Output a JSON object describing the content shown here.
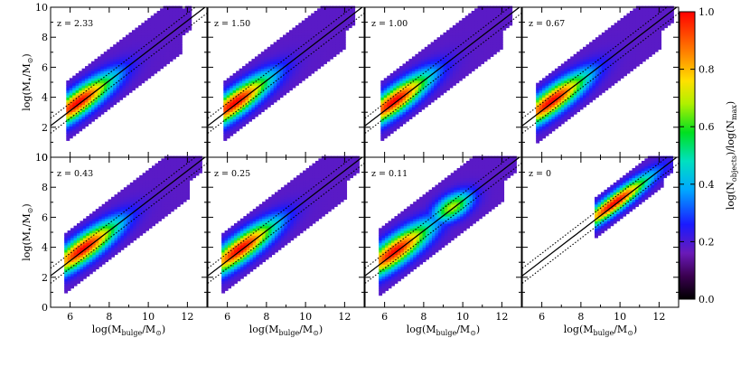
{
  "chart_data": {
    "type": "heatmap",
    "description_grid": "2x4 density maps of black hole mass vs bulge mass at several redshifts",
    "xlim": [
      5,
      13
    ],
    "ylim": [
      0,
      10
    ],
    "x_ticks": [
      6,
      8,
      10,
      12
    ],
    "y_ticks": [
      0,
      2,
      4,
      6,
      8,
      10
    ],
    "xlabel_main": "log(M",
    "xlabel_sub": "bulge",
    "xlabel_tail": "/M",
    "xlabel_sun": "⊙",
    "xlabel_close": ")",
    "ylabel_main": "log(M",
    "ylabel_sub": "•",
    "ylabel_tail": "/M",
    "ylabel_sun": "⊙",
    "ylabel_close": ")",
    "colorbar": {
      "label_pre": "log(N",
      "label_sub1": "objects",
      "label_mid": ")/log(N",
      "label_sub2": "max",
      "label_close": ")",
      "range": [
        0,
        1
      ],
      "ticks": [
        "0.0",
        "0.2",
        "0.4",
        "0.6",
        "0.8",
        "1.0"
      ],
      "colormap": "rainbow (black-purple-blue-cyan-green-yellow-red)"
    },
    "relation": {
      "slope": 1.0,
      "intercept": -2.9,
      "scatter_dex": 0.5,
      "line_style": "solid with dotted ±scatter"
    },
    "panels": [
      {
        "z_label": "z = 2.33",
        "peak": [
          6.3,
          3.6
        ],
        "x_range": [
          5.8,
          12.2
        ],
        "density_width": 1.0,
        "extent": 1.0
      },
      {
        "z_label": "z = 1.50",
        "peak": [
          6.3,
          3.6
        ],
        "x_range": [
          5.8,
          12.5
        ],
        "density_width": 1.0,
        "extent": 1.0
      },
      {
        "z_label": "z = 1.00",
        "peak": [
          6.4,
          3.7
        ],
        "x_range": [
          5.8,
          12.5
        ],
        "density_width": 1.0,
        "extent": 1.0
      },
      {
        "z_label": "z = 0.67",
        "peak": [
          6.4,
          3.7
        ],
        "x_range": [
          5.7,
          12.7
        ],
        "density_width": 1.0,
        "extent": 1.0
      },
      {
        "z_label": "z = 0.43",
        "peak": [
          6.6,
          3.8
        ],
        "x_range": [
          5.7,
          12.7
        ],
        "density_width": 1.0,
        "extent": 1.0
      },
      {
        "z_label": "z = 0.25",
        "peak": [
          6.6,
          3.8
        ],
        "x_range": [
          5.7,
          12.7
        ],
        "density_width": 1.0,
        "extent": 1.0
      },
      {
        "z_label": "z = 0.11",
        "peak": [
          6.6,
          3.5
        ],
        "x_range": [
          5.7,
          12.7
        ],
        "density_width": 1.1,
        "extent": 1.0,
        "secondary_peak": [
          9.4,
          6.6
        ]
      },
      {
        "z_label": "z = 0",
        "peak": [
          9.6,
          6.9
        ],
        "x_range": [
          8.7,
          12.7
        ],
        "density_width": 0.7,
        "extent": 0.55
      }
    ]
  }
}
